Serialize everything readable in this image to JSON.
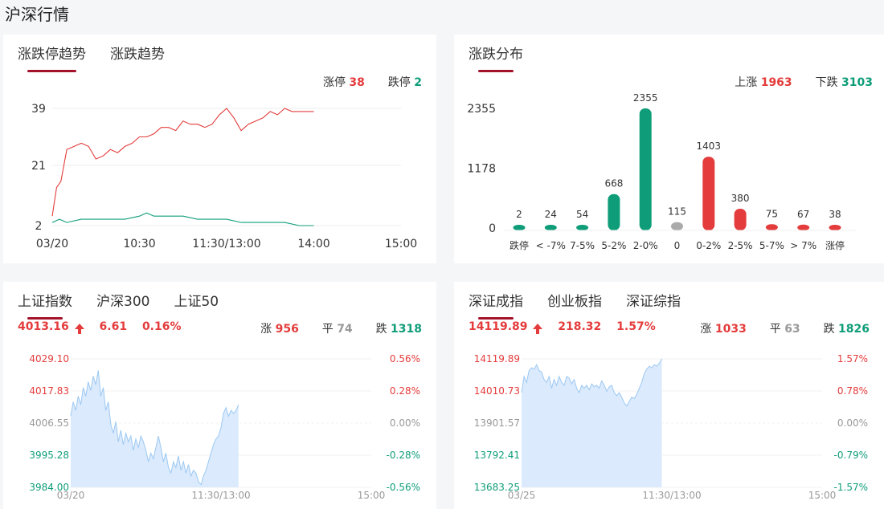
{
  "page_title": "沪深行情",
  "colors": {
    "up": "#e43c3c",
    "down": "#0f9d79",
    "flat": "#999999",
    "accent": "#a4122a",
    "area": "#dbeafc",
    "area_line": "#9cc8f3"
  },
  "limit_card": {
    "tabs": [
      "涨跌停趋势",
      "涨跌趋势"
    ],
    "limit_up_label": "涨停",
    "limit_up_value": "38",
    "limit_down_label": "跌停",
    "limit_down_value": "2",
    "chart_data": {
      "type": "line",
      "y_ticks": [
        "39",
        "21",
        "2"
      ],
      "x_ticks": [
        "03/20",
        "10:30",
        "11:30/13:00",
        "14:00",
        "15:00"
      ],
      "ylim": [
        2,
        39
      ],
      "x_unit": "minutes since 9:30 (trading session, 240 total)",
      "series": [
        {
          "name": "涨停",
          "color": "#e43c3c",
          "points": [
            [
              0,
              5
            ],
            [
              3,
              14
            ],
            [
              6,
              16
            ],
            [
              10,
              26
            ],
            [
              15,
              27
            ],
            [
              20,
              28
            ],
            [
              25,
              27
            ],
            [
              30,
              23
            ],
            [
              35,
              24
            ],
            [
              40,
              26
            ],
            [
              45,
              25
            ],
            [
              50,
              27
            ],
            [
              55,
              28
            ],
            [
              60,
              30
            ],
            [
              65,
              30
            ],
            [
              70,
              31
            ],
            [
              75,
              33
            ],
            [
              80,
              33
            ],
            [
              85,
              32
            ],
            [
              90,
              35
            ],
            [
              95,
              34
            ],
            [
              100,
              34
            ],
            [
              105,
              33
            ],
            [
              110,
              34
            ],
            [
              115,
              37
            ],
            [
              120,
              39
            ],
            [
              125,
              36
            ],
            [
              130,
              32
            ],
            [
              135,
              34
            ],
            [
              140,
              35
            ],
            [
              145,
              36
            ],
            [
              150,
              38
            ],
            [
              155,
              37
            ],
            [
              160,
              39
            ],
            [
              165,
              38
            ],
            [
              170,
              38
            ],
            [
              180,
              38
            ]
          ]
        },
        {
          "name": "跌停",
          "color": "#0f9d79",
          "points": [
            [
              0,
              3
            ],
            [
              5,
              4
            ],
            [
              10,
              3
            ],
            [
              20,
              4
            ],
            [
              30,
              4
            ],
            [
              40,
              4
            ],
            [
              50,
              4
            ],
            [
              60,
              5
            ],
            [
              65,
              6
            ],
            [
              70,
              5
            ],
            [
              80,
              5
            ],
            [
              90,
              5
            ],
            [
              100,
              4
            ],
            [
              110,
              4
            ],
            [
              120,
              4
            ],
            [
              130,
              3
            ],
            [
              140,
              3
            ],
            [
              150,
              3
            ],
            [
              160,
              3
            ],
            [
              170,
              2
            ],
            [
              180,
              2
            ]
          ]
        }
      ]
    }
  },
  "dist_card": {
    "tabs": [
      "涨跌分布"
    ],
    "up_label": "上涨",
    "up_value": "1963",
    "down_label": "下跌",
    "down_value": "3103",
    "chart_data": {
      "type": "bar",
      "y_ticks": [
        "2355",
        "1178",
        "0"
      ],
      "ylim": [
        0,
        2355
      ],
      "categories": [
        "跌停",
        "< -7%",
        "7-5%",
        "5-2%",
        "2-0%",
        "0",
        "0-2%",
        "2-5%",
        "5-7%",
        "> 7%",
        "涨停"
      ],
      "values": [
        2,
        24,
        54,
        668,
        2355,
        115,
        1403,
        380,
        75,
        67,
        38
      ],
      "labels": [
        "2",
        "24",
        "54",
        "668",
        "2355",
        "115",
        "1403",
        "380",
        "75",
        "67",
        "38"
      ],
      "colors": [
        "#0f9d79",
        "#0f9d79",
        "#0f9d79",
        "#0f9d79",
        "#0f9d79",
        "#aaaaaa",
        "#e43c3c",
        "#e43c3c",
        "#e43c3c",
        "#e43c3c",
        "#e43c3c"
      ]
    }
  },
  "sh_card": {
    "tabs": [
      "上证指数",
      "沪深300",
      "上证50"
    ],
    "price": "4013.16",
    "change": "6.61",
    "pct": "0.16%",
    "up_label": "涨",
    "up_value": "956",
    "flat_label": "平",
    "flat_value": "74",
    "down_label": "跌",
    "down_value": "1318",
    "chart_data": {
      "type": "area",
      "y_left_ticks": [
        "4029.10",
        "4017.83",
        "4006.55",
        "3995.28",
        "3984.00"
      ],
      "y_right_ticks": [
        "0.56%",
        "0.28%",
        "0.00%",
        "-0.28%",
        "-0.56%"
      ],
      "tick_colors": [
        "#e43c3c",
        "#e43c3c",
        "#999999",
        "#0f9d79",
        "#0f9d79"
      ],
      "x_ticks": [
        "03/20",
        "11:30/13:00",
        "15:00"
      ],
      "ylim": [
        3984.0,
        4029.1
      ],
      "points": [
        [
          0,
          4009
        ],
        [
          2,
          4014
        ],
        [
          4,
          4011
        ],
        [
          6,
          4016
        ],
        [
          8,
          4013
        ],
        [
          10,
          4019
        ],
        [
          12,
          4016
        ],
        [
          14,
          4021
        ],
        [
          16,
          4018
        ],
        [
          18,
          4023
        ],
        [
          20,
          4020
        ],
        [
          22,
          4025
        ],
        [
          24,
          4016
        ],
        [
          26,
          4019
        ],
        [
          28,
          4011
        ],
        [
          30,
          4014
        ],
        [
          32,
          4006
        ],
        [
          34,
          4003
        ],
        [
          36,
          4007
        ],
        [
          38,
          4000
        ],
        [
          40,
          4004
        ],
        [
          42,
          3999
        ],
        [
          44,
          4003
        ],
        [
          46,
          4000
        ],
        [
          48,
          4002
        ],
        [
          50,
          3997
        ],
        [
          52,
          4001
        ],
        [
          54,
          3998
        ],
        [
          56,
          4002
        ],
        [
          58,
          4000
        ],
        [
          60,
          3997
        ],
        [
          62,
          3993
        ],
        [
          64,
          3996
        ],
        [
          66,
          3994
        ],
        [
          68,
          3998
        ],
        [
          70,
          4002
        ],
        [
          72,
          3998
        ],
        [
          74,
          3993
        ],
        [
          76,
          3996
        ],
        [
          78,
          3991
        ],
        [
          80,
          3989
        ],
        [
          82,
          3993
        ],
        [
          84,
          3991
        ],
        [
          86,
          3995
        ],
        [
          88,
          3990
        ],
        [
          90,
          3993
        ],
        [
          92,
          3989
        ],
        [
          94,
          3992
        ],
        [
          96,
          3988
        ],
        [
          98,
          3990
        ],
        [
          100,
          3989
        ],
        [
          102,
          3986
        ],
        [
          104,
          3985
        ],
        [
          106,
          3988
        ],
        [
          108,
          3990
        ],
        [
          110,
          3993
        ],
        [
          112,
          3996
        ],
        [
          114,
          3999
        ],
        [
          116,
          4001
        ],
        [
          118,
          4002
        ],
        [
          120,
          4005
        ],
        [
          122,
          4010
        ],
        [
          124,
          4012
        ],
        [
          126,
          4009
        ],
        [
          128,
          4011
        ],
        [
          130,
          4010
        ],
        [
          132,
          4011
        ],
        [
          134,
          4013
        ]
      ]
    }
  },
  "sz_card": {
    "tabs": [
      "深证成指",
      "创业板指",
      "深证综指"
    ],
    "price": "14119.89",
    "change": "218.32",
    "pct": "1.57%",
    "up_label": "涨",
    "up_value": "1033",
    "flat_label": "平",
    "flat_value": "63",
    "down_label": "跌",
    "down_value": "1826",
    "chart_data": {
      "type": "area",
      "y_left_ticks": [
        "14119.89",
        "14010.73",
        "13901.57",
        "13792.41",
        "13683.25"
      ],
      "y_right_ticks": [
        "1.57%",
        "0.78%",
        "0.00%",
        "-0.79%",
        "-1.57%"
      ],
      "tick_colors": [
        "#e43c3c",
        "#e43c3c",
        "#999999",
        "#0f9d79",
        "#0f9d79"
      ],
      "x_ticks": [
        "03/25",
        "11:30/13:00",
        "15:00"
      ],
      "ylim": [
        13683.25,
        14119.89
      ],
      "points": [
        [
          0,
          14005
        ],
        [
          2,
          14060
        ],
        [
          4,
          14040
        ],
        [
          6,
          14080
        ],
        [
          8,
          14090
        ],
        [
          10,
          14085
        ],
        [
          12,
          14100
        ],
        [
          14,
          14080
        ],
        [
          16,
          14075
        ],
        [
          18,
          14050
        ],
        [
          20,
          14040
        ],
        [
          22,
          14060
        ],
        [
          24,
          14020
        ],
        [
          26,
          14050
        ],
        [
          28,
          14030
        ],
        [
          30,
          14060
        ],
        [
          32,
          14040
        ],
        [
          34,
          14030
        ],
        [
          36,
          14060
        ],
        [
          38,
          14055
        ],
        [
          40,
          14035
        ],
        [
          42,
          14050
        ],
        [
          44,
          14020
        ],
        [
          46,
          14005
        ],
        [
          48,
          14030
        ],
        [
          50,
          14020
        ],
        [
          52,
          14030
        ],
        [
          54,
          14015
        ],
        [
          56,
          14035
        ],
        [
          58,
          14025
        ],
        [
          60,
          14030
        ],
        [
          62,
          14020
        ],
        [
          64,
          14045
        ],
        [
          66,
          14030
        ],
        [
          68,
          14010
        ],
        [
          70,
          14025
        ],
        [
          72,
          14030
        ],
        [
          74,
          14005
        ],
        [
          76,
          13995
        ],
        [
          78,
          14005
        ],
        [
          80,
          13990
        ],
        [
          82,
          13970
        ],
        [
          84,
          13960
        ],
        [
          86,
          13975
        ],
        [
          88,
          13990
        ],
        [
          90,
          13985
        ],
        [
          92,
          14000
        ],
        [
          94,
          14020
        ],
        [
          96,
          14040
        ],
        [
          98,
          14070
        ],
        [
          100,
          14085
        ],
        [
          102,
          14095
        ],
        [
          104,
          14090
        ],
        [
          106,
          14100
        ],
        [
          108,
          14095
        ],
        [
          110,
          14105
        ],
        [
          112,
          14120
        ]
      ]
    }
  }
}
